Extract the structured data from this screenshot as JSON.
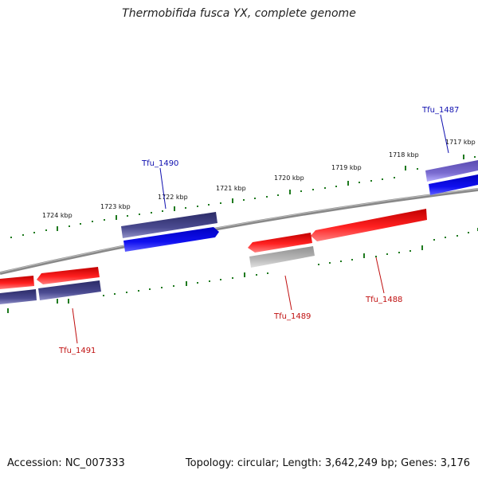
{
  "title": "Thermobifida fusca YX, complete genome",
  "footer": {
    "accession": "Accession: NC_007333",
    "summary": "Topology: circular; Length: 3,642,249 bp; Genes: 3,176"
  },
  "colors": {
    "backbone": "#808080",
    "ticks": "#1f7a1f",
    "forward_cds": "#ee1c1c",
    "reverse_cds": "#3a3a80",
    "gene_blue": "#1010e8",
    "gene_light_purple": "#7a6cc8",
    "pseudo_gray": "#aaaaaa",
    "label_blue": "#1010b0",
    "label_red": "#c01010"
  },
  "scale_labels": [
    "1717 kbp",
    "1718 kbp",
    "1719 kbp",
    "1720 kbp",
    "1721 kbp",
    "1722 kbp",
    "1723 kbp",
    "1724 kbp"
  ],
  "gene_labels": [
    {
      "id": "tfu1487",
      "text": "Tfu_1487",
      "color": "label_blue"
    },
    {
      "id": "tfu1488",
      "text": "Tfu_1488",
      "color": "label_red"
    },
    {
      "id": "tfu1489",
      "text": "Tfu_1489",
      "color": "label_red"
    },
    {
      "id": "tfu1490",
      "text": "Tfu_1490",
      "color": "label_blue"
    },
    {
      "id": "tfu1491",
      "text": "Tfu_1491",
      "color": "label_red"
    }
  ]
}
